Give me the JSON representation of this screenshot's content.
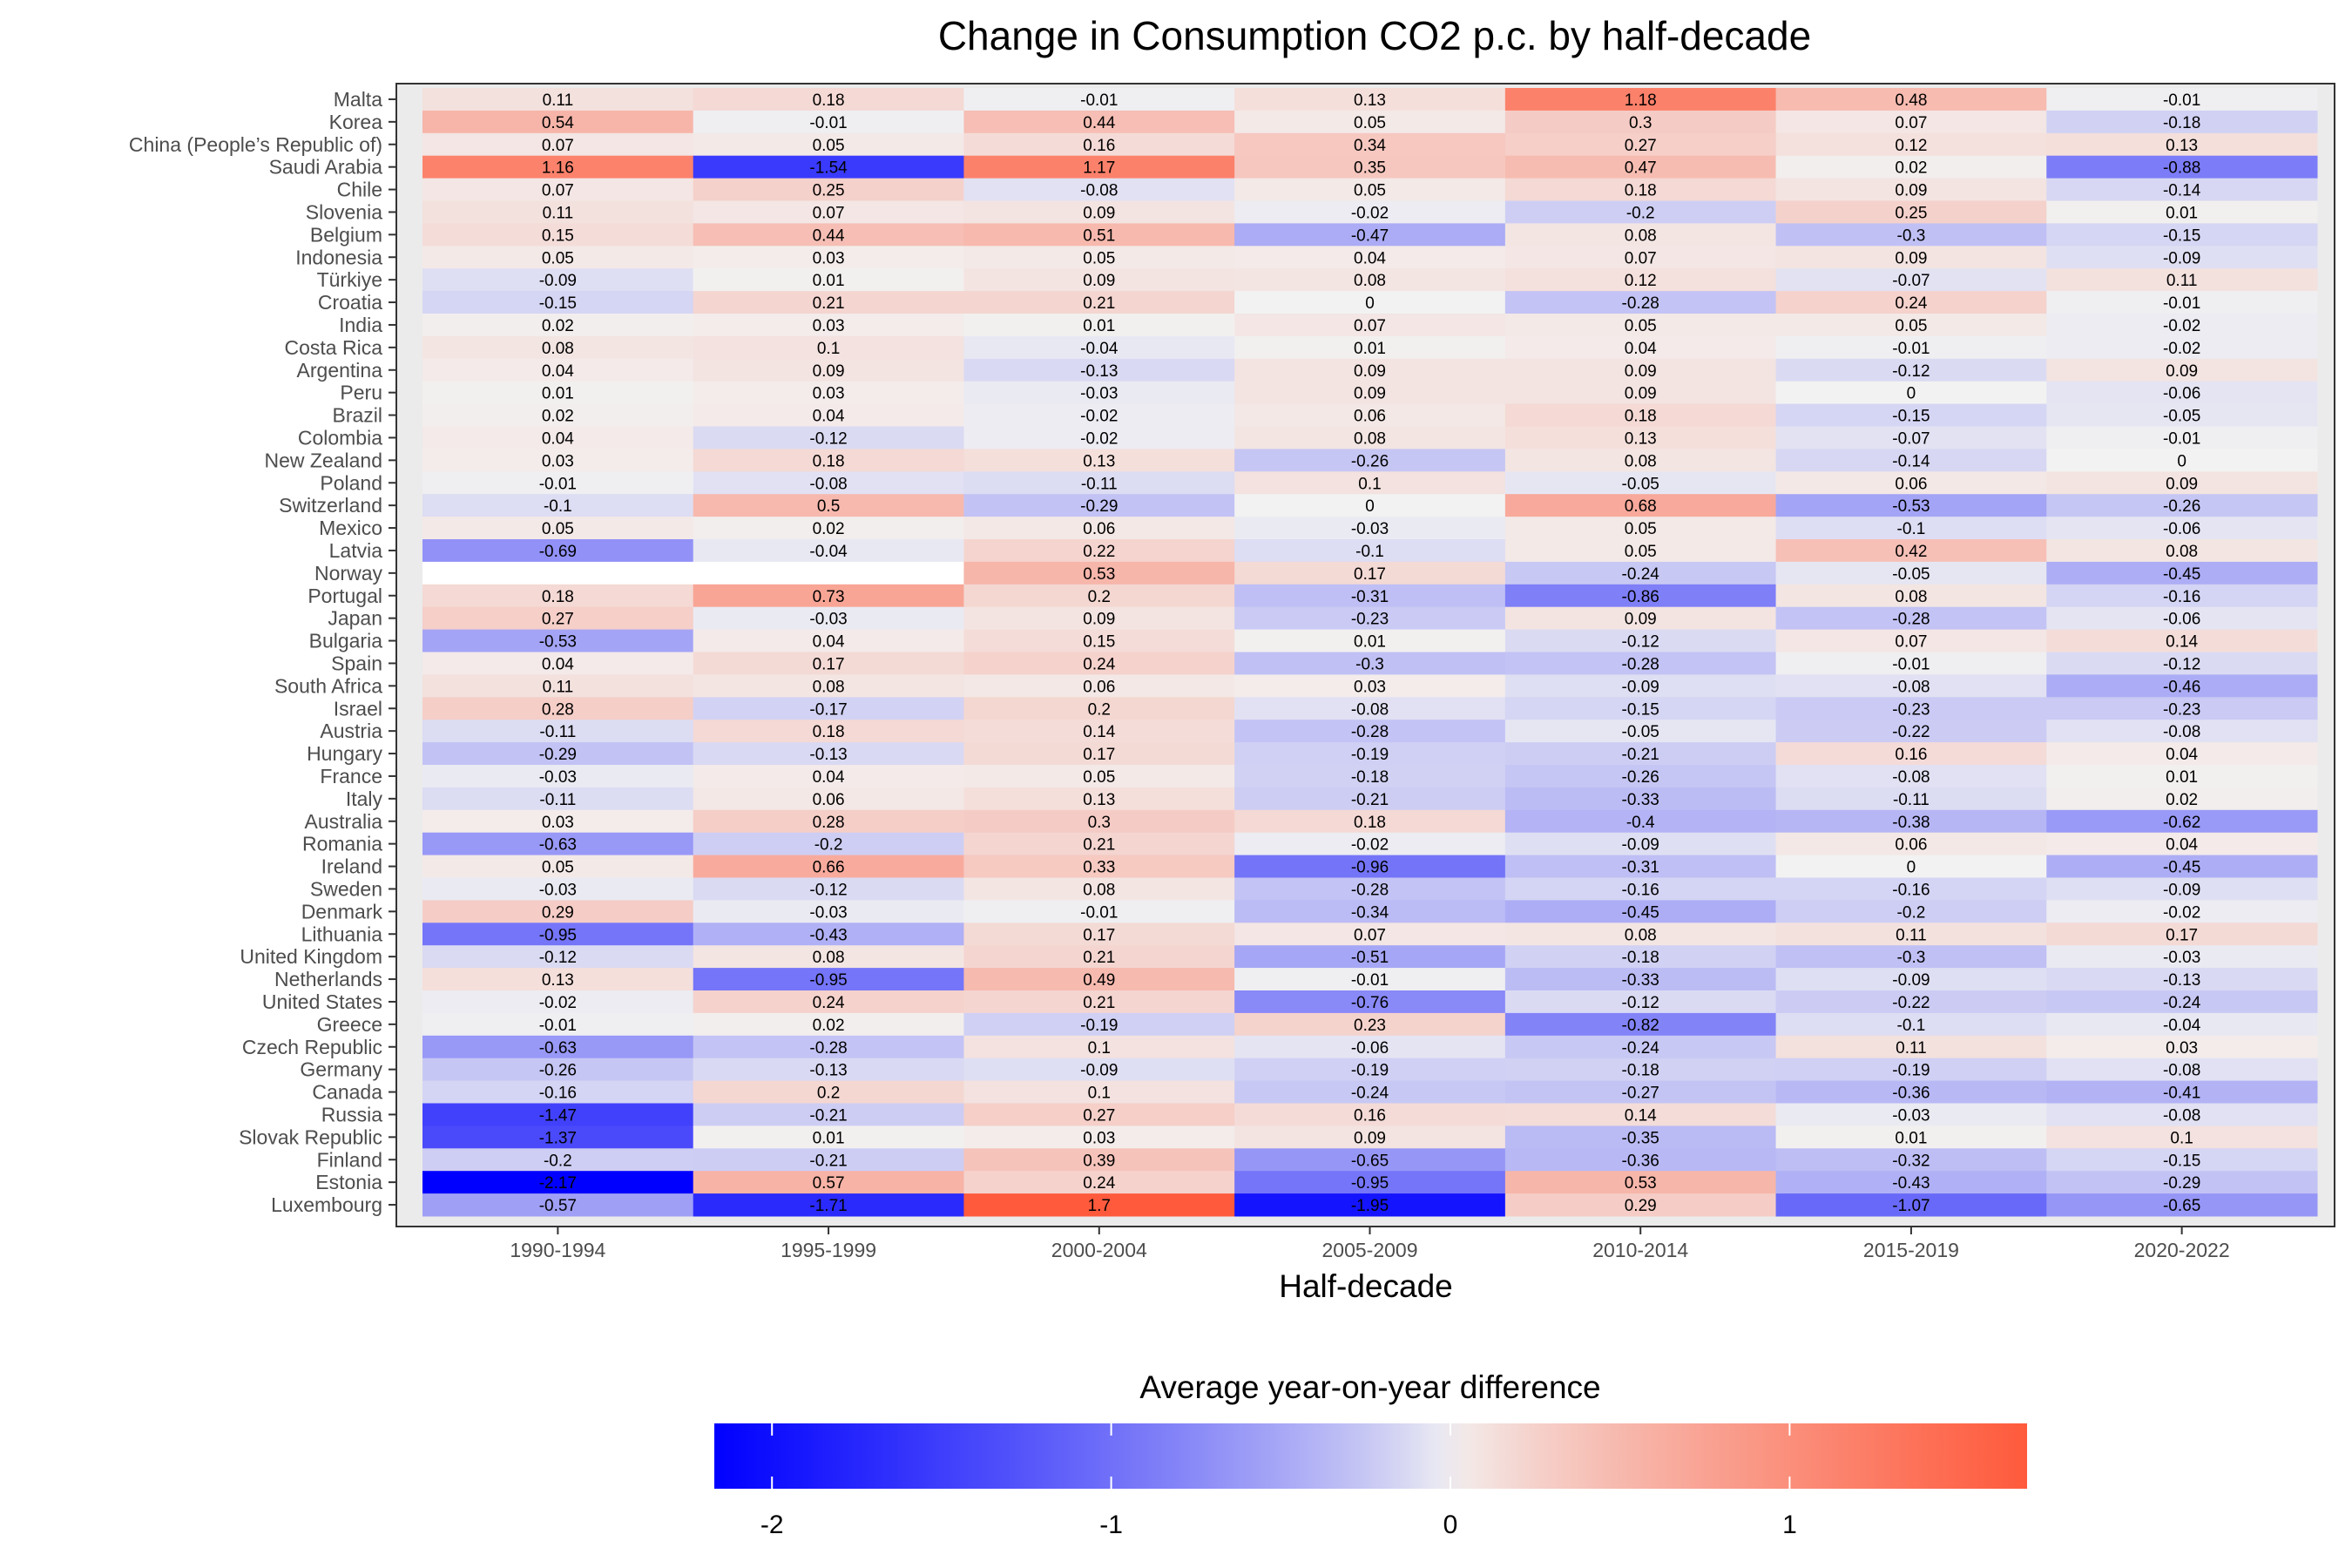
{
  "chart_data": {
    "type": "heatmap",
    "title": "Change in Consumption CO2 p.c. by half-decade",
    "xlabel": "Half-decade",
    "ylabel": "",
    "categories": [
      "1990-1994",
      "1995-1999",
      "2000-2004",
      "2005-2009",
      "2010-2014",
      "2015-2019",
      "2020-2022"
    ],
    "rows": [
      {
        "name": "Malta",
        "values": [
          0.11,
          0.18,
          -0.01,
          0.13,
          1.18,
          0.48,
          -0.01
        ]
      },
      {
        "name": "Korea",
        "values": [
          0.54,
          -0.01,
          0.44,
          0.05,
          0.3,
          0.07,
          -0.18
        ]
      },
      {
        "name": "China (People’s Republic of)",
        "values": [
          0.07,
          0.05,
          0.16,
          0.34,
          0.27,
          0.12,
          0.13
        ]
      },
      {
        "name": "Saudi Arabia",
        "values": [
          1.16,
          -1.54,
          1.17,
          0.35,
          0.47,
          0.02,
          -0.88
        ]
      },
      {
        "name": "Chile",
        "values": [
          0.07,
          0.25,
          -0.08,
          0.05,
          0.18,
          0.09,
          -0.14
        ]
      },
      {
        "name": "Slovenia",
        "values": [
          0.11,
          0.07,
          0.09,
          -0.02,
          -0.2,
          0.25,
          0.01
        ]
      },
      {
        "name": "Belgium",
        "values": [
          0.15,
          0.44,
          0.51,
          -0.47,
          0.08,
          -0.3,
          -0.15
        ]
      },
      {
        "name": "Indonesia",
        "values": [
          0.05,
          0.03,
          0.05,
          0.04,
          0.07,
          0.09,
          -0.09
        ]
      },
      {
        "name": "Türkiye",
        "values": [
          -0.09,
          0.01,
          0.09,
          0.08,
          0.12,
          -0.07,
          0.11
        ]
      },
      {
        "name": "Croatia",
        "values": [
          -0.15,
          0.21,
          0.21,
          0,
          -0.28,
          0.24,
          -0.01
        ]
      },
      {
        "name": "India",
        "values": [
          0.02,
          0.03,
          0.01,
          0.07,
          0.05,
          0.05,
          -0.02
        ]
      },
      {
        "name": "Costa Rica",
        "values": [
          0.08,
          0.1,
          -0.04,
          0.01,
          0.04,
          -0.01,
          -0.02
        ]
      },
      {
        "name": "Argentina",
        "values": [
          0.04,
          0.09,
          -0.13,
          0.09,
          0.09,
          -0.12,
          0.09
        ]
      },
      {
        "name": "Peru",
        "values": [
          0.01,
          0.03,
          -0.03,
          0.09,
          0.09,
          0,
          -0.06
        ]
      },
      {
        "name": "Brazil",
        "values": [
          0.02,
          0.04,
          -0.02,
          0.06,
          0.18,
          -0.15,
          -0.05
        ]
      },
      {
        "name": "Colombia",
        "values": [
          0.04,
          -0.12,
          -0.02,
          0.08,
          0.13,
          -0.07,
          -0.01
        ]
      },
      {
        "name": "New Zealand",
        "values": [
          0.03,
          0.18,
          0.13,
          -0.26,
          0.08,
          -0.14,
          0
        ]
      },
      {
        "name": "Poland",
        "values": [
          -0.01,
          -0.08,
          -0.11,
          0.1,
          -0.05,
          0.06,
          0.09
        ]
      },
      {
        "name": "Switzerland",
        "values": [
          -0.1,
          0.5,
          -0.29,
          0,
          0.68,
          -0.53,
          -0.26
        ]
      },
      {
        "name": "Mexico",
        "values": [
          0.05,
          0.02,
          0.06,
          -0.03,
          0.05,
          -0.1,
          -0.06
        ]
      },
      {
        "name": "Latvia",
        "values": [
          -0.69,
          -0.04,
          0.22,
          -0.1,
          0.05,
          0.42,
          0.08
        ]
      },
      {
        "name": "Norway",
        "values": [
          null,
          null,
          0.53,
          0.17,
          -0.24,
          -0.05,
          -0.45
        ]
      },
      {
        "name": "Portugal",
        "values": [
          0.18,
          0.73,
          0.2,
          -0.31,
          -0.86,
          0.08,
          -0.16
        ]
      },
      {
        "name": "Japan",
        "values": [
          0.27,
          -0.03,
          0.09,
          -0.23,
          0.09,
          -0.28,
          -0.06
        ]
      },
      {
        "name": "Bulgaria",
        "values": [
          -0.53,
          0.04,
          0.15,
          0.01,
          -0.12,
          0.07,
          0.14
        ]
      },
      {
        "name": "Spain",
        "values": [
          0.04,
          0.17,
          0.24,
          -0.3,
          -0.28,
          -0.01,
          -0.12
        ]
      },
      {
        "name": "South Africa",
        "values": [
          0.11,
          0.08,
          0.06,
          0.03,
          -0.09,
          -0.08,
          -0.46
        ]
      },
      {
        "name": "Israel",
        "values": [
          0.28,
          -0.17,
          0.2,
          -0.08,
          -0.15,
          -0.23,
          -0.23
        ]
      },
      {
        "name": "Austria",
        "values": [
          -0.11,
          0.18,
          0.14,
          -0.28,
          -0.05,
          -0.22,
          -0.08
        ]
      },
      {
        "name": "Hungary",
        "values": [
          -0.29,
          -0.13,
          0.17,
          -0.19,
          -0.21,
          0.16,
          0.04
        ]
      },
      {
        "name": "France",
        "values": [
          -0.03,
          0.04,
          0.05,
          -0.18,
          -0.26,
          -0.08,
          0.01
        ]
      },
      {
        "name": "Italy",
        "values": [
          -0.11,
          0.06,
          0.13,
          -0.21,
          -0.33,
          -0.11,
          0.02
        ]
      },
      {
        "name": "Australia",
        "values": [
          0.03,
          0.28,
          0.3,
          0.18,
          -0.4,
          -0.38,
          -0.62
        ]
      },
      {
        "name": "Romania",
        "values": [
          -0.63,
          -0.2,
          0.21,
          -0.02,
          -0.09,
          0.06,
          0.04
        ]
      },
      {
        "name": "Ireland",
        "values": [
          0.05,
          0.66,
          0.33,
          -0.96,
          -0.31,
          0,
          -0.45
        ]
      },
      {
        "name": "Sweden",
        "values": [
          -0.03,
          -0.12,
          0.08,
          -0.28,
          -0.16,
          -0.16,
          -0.09
        ]
      },
      {
        "name": "Denmark",
        "values": [
          0.29,
          -0.03,
          -0.01,
          -0.34,
          -0.45,
          -0.2,
          -0.02
        ]
      },
      {
        "name": "Lithuania",
        "values": [
          -0.95,
          -0.43,
          0.17,
          0.07,
          0.08,
          0.11,
          0.17
        ]
      },
      {
        "name": "United Kingdom",
        "values": [
          -0.12,
          0.08,
          0.21,
          -0.51,
          -0.18,
          -0.3,
          -0.03
        ]
      },
      {
        "name": "Netherlands",
        "values": [
          0.13,
          -0.95,
          0.49,
          -0.01,
          -0.33,
          -0.09,
          -0.13
        ]
      },
      {
        "name": "United States",
        "values": [
          -0.02,
          0.24,
          0.21,
          -0.76,
          -0.12,
          -0.22,
          -0.24
        ]
      },
      {
        "name": "Greece",
        "values": [
          -0.01,
          0.02,
          -0.19,
          0.23,
          -0.82,
          -0.1,
          -0.04
        ]
      },
      {
        "name": "Czech Republic",
        "values": [
          -0.63,
          -0.28,
          0.1,
          -0.06,
          -0.24,
          0.11,
          0.03
        ]
      },
      {
        "name": "Germany",
        "values": [
          -0.26,
          -0.13,
          -0.09,
          -0.19,
          -0.18,
          -0.19,
          -0.08
        ]
      },
      {
        "name": "Canada",
        "values": [
          -0.16,
          0.2,
          0.1,
          -0.24,
          -0.27,
          -0.36,
          -0.41
        ]
      },
      {
        "name": "Russia",
        "values": [
          -1.47,
          -0.21,
          0.27,
          0.16,
          0.14,
          -0.03,
          -0.08
        ]
      },
      {
        "name": "Slovak Republic",
        "values": [
          -1.37,
          0.01,
          0.03,
          0.09,
          -0.35,
          0.01,
          0.1
        ]
      },
      {
        "name": "Finland",
        "values": [
          -0.2,
          -0.21,
          0.39,
          -0.65,
          -0.36,
          -0.32,
          -0.15
        ]
      },
      {
        "name": "Estonia",
        "values": [
          -2.17,
          0.57,
          0.24,
          -0.95,
          0.53,
          -0.43,
          -0.29
        ]
      },
      {
        "name": "Luxembourg",
        "values": [
          -0.57,
          -1.71,
          1.7,
          -1.95,
          0.29,
          -1.07,
          -0.65
        ]
      }
    ],
    "legend": {
      "title": "Average year-on-year difference",
      "placement": "bottom",
      "ticks": [
        -2,
        -1,
        0,
        1
      ],
      "range": [
        -2.17,
        1.7
      ]
    },
    "colors": {
      "low": "#0000ff",
      "mid": "#f2f2f2",
      "high": "#ff5a3c",
      "background": "#ebebeb",
      "grid": "#ffffff",
      "missing": "#ffffff"
    },
    "grid": true
  }
}
